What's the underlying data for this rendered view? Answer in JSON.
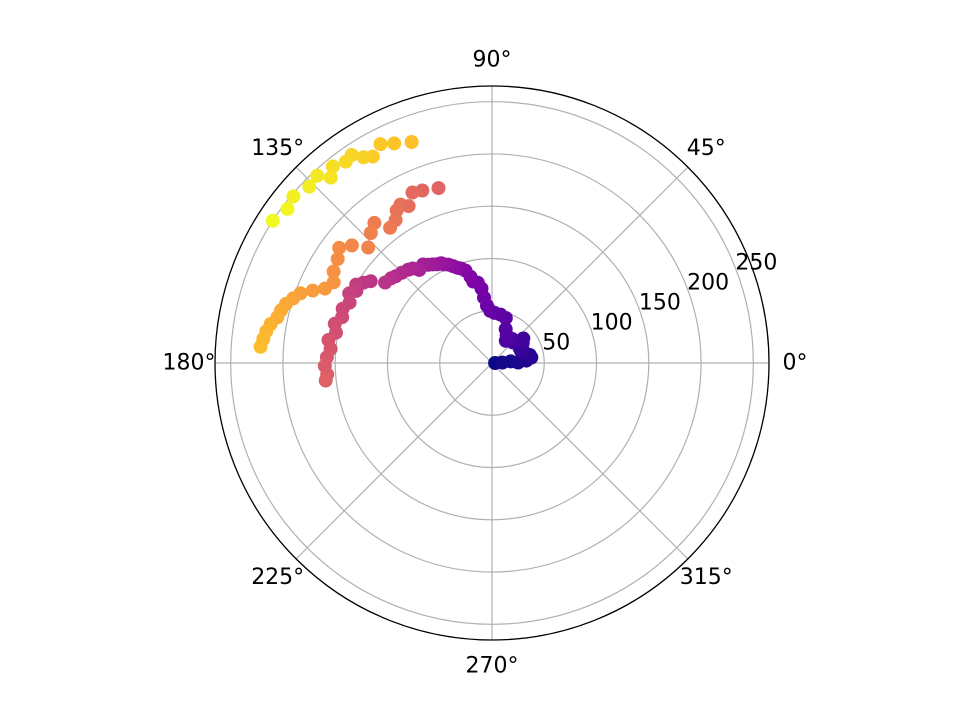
{
  "chart_data": {
    "type": "scatter",
    "projection": "polar",
    "title": "",
    "theta_unit": "degrees",
    "theta_ticks": [
      0,
      45,
      90,
      135,
      180,
      225,
      270,
      315
    ],
    "theta_tick_labels": [
      "0°",
      "45°",
      "90°",
      "135°",
      "180°",
      "225°",
      "270°",
      "315°"
    ],
    "r_ticks": [
      50,
      100,
      150,
      200,
      250
    ],
    "r_tick_labels": [
      "50",
      "100",
      "150",
      "200",
      "250"
    ],
    "r_label_angle_deg": 22.5,
    "rlim": [
      0,
      265
    ],
    "grid": true,
    "legend": "none",
    "colormap": "plasma",
    "color_by": "index",
    "marker_color_range": [
      "#0d0887",
      "#f0f921"
    ],
    "points": [
      {
        "theta": 0,
        "r": 3
      },
      {
        "theta": 2,
        "r": 10
      },
      {
        "theta": 5,
        "r": 18
      },
      {
        "theta": 1,
        "r": 25
      },
      {
        "theta": 4,
        "r": 33
      },
      {
        "theta": 8,
        "r": 38
      },
      {
        "theta": 12,
        "r": 37
      },
      {
        "theta": 17,
        "r": 33
      },
      {
        "theta": 22,
        "r": 30
      },
      {
        "theta": 28,
        "r": 30
      },
      {
        "theta": 33,
        "r": 35
      },
      {
        "theta": 38,
        "r": 38
      },
      {
        "theta": 45,
        "r": 28
      },
      {
        "theta": 50,
        "r": 30
      },
      {
        "theta": 58,
        "r": 25
      },
      {
        "theta": 62,
        "r": 30
      },
      {
        "theta": 68,
        "r": 35
      },
      {
        "theta": 73,
        "r": 45
      },
      {
        "theta": 80,
        "r": 47
      },
      {
        "theta": 87,
        "r": 48
      },
      {
        "theta": 92,
        "r": 50
      },
      {
        "theta": 95,
        "r": 55
      },
      {
        "theta": 97,
        "r": 63
      },
      {
        "theta": 98,
        "r": 72
      },
      {
        "theta": 100,
        "r": 78
      },
      {
        "theta": 103,
        "r": 80
      },
      {
        "theta": 104,
        "r": 85
      },
      {
        "theta": 106,
        "r": 92
      },
      {
        "theta": 108,
        "r": 95
      },
      {
        "theta": 110,
        "r": 97
      },
      {
        "theta": 112,
        "r": 100
      },
      {
        "theta": 114,
        "r": 103
      },
      {
        "theta": 116,
        "r": 105
      },
      {
        "theta": 117,
        "r": 107
      },
      {
        "theta": 119,
        "r": 108
      },
      {
        "theta": 121,
        "r": 110
      },
      {
        "theta": 123,
        "r": 112
      },
      {
        "theta": 125,
        "r": 115
      },
      {
        "theta": 128,
        "r": 113
      },
      {
        "theta": 130,
        "r": 118
      },
      {
        "theta": 132,
        "r": 120
      },
      {
        "theta": 135,
        "r": 122
      },
      {
        "theta": 138,
        "r": 124
      },
      {
        "theta": 140,
        "r": 126
      },
      {
        "theta": 143,
        "r": 128
      },
      {
        "theta": 146,
        "r": 140
      },
      {
        "theta": 148,
        "r": 145
      },
      {
        "theta": 150,
        "r": 150
      },
      {
        "theta": 152,
        "r": 147
      },
      {
        "theta": 154,
        "r": 152
      },
      {
        "theta": 157,
        "r": 148
      },
      {
        "theta": 160,
        "r": 152
      },
      {
        "theta": 163,
        "r": 150
      },
      {
        "theta": 166,
        "r": 155
      },
      {
        "theta": 169,
        "r": 152
      },
      {
        "theta": 172,
        "r": 158
      },
      {
        "theta": 175,
        "r": 155
      },
      {
        "theta": 178,
        "r": 158
      },
      {
        "theta": 181,
        "r": 160
      },
      {
        "theta": 184,
        "r": 158
      },
      {
        "theta": 186,
        "r": 160
      },
      {
        "theta": 107,
        "r": 175
      },
      {
        "theta": 112,
        "r": 178
      },
      {
        "theta": 115,
        "r": 180
      },
      {
        "theta": 118,
        "r": 170
      },
      {
        "theta": 120,
        "r": 175
      },
      {
        "theta": 122,
        "r": 172
      },
      {
        "theta": 124,
        "r": 165
      },
      {
        "theta": 127,
        "r": 162
      },
      {
        "theta": 130,
        "r": 175
      },
      {
        "theta": 133,
        "r": 170
      },
      {
        "theta": 137,
        "r": 162
      },
      {
        "theta": 140,
        "r": 175
      },
      {
        "theta": 143,
        "r": 183
      },
      {
        "theta": 146,
        "r": 178
      },
      {
        "theta": 150,
        "r": 175
      },
      {
        "theta": 153,
        "r": 170
      },
      {
        "theta": 156,
        "r": 175
      },
      {
        "theta": 158,
        "r": 185
      },
      {
        "theta": 160,
        "r": 195
      },
      {
        "theta": 162,
        "r": 200
      },
      {
        "theta": 164,
        "r": 205
      },
      {
        "theta": 166,
        "r": 208
      },
      {
        "theta": 168,
        "r": 210
      },
      {
        "theta": 170,
        "r": 215
      },
      {
        "theta": 172,
        "r": 218
      },
      {
        "theta": 174,
        "r": 220
      },
      {
        "theta": 176,
        "r": 222
      },
      {
        "theta": 110,
        "r": 225
      },
      {
        "theta": 114,
        "r": 230
      },
      {
        "theta": 117,
        "r": 235
      },
      {
        "theta": 120,
        "r": 228
      },
      {
        "theta": 122,
        "r": 232
      },
      {
        "theta": 124,
        "r": 240
      },
      {
        "theta": 126,
        "r": 238
      },
      {
        "theta": 129,
        "r": 242
      },
      {
        "theta": 131,
        "r": 235
      },
      {
        "theta": 133,
        "r": 245
      },
      {
        "theta": 136,
        "r": 243
      },
      {
        "theta": 140,
        "r": 248
      },
      {
        "theta": 143,
        "r": 245
      },
      {
        "theta": 147,
        "r": 250
      }
    ]
  }
}
